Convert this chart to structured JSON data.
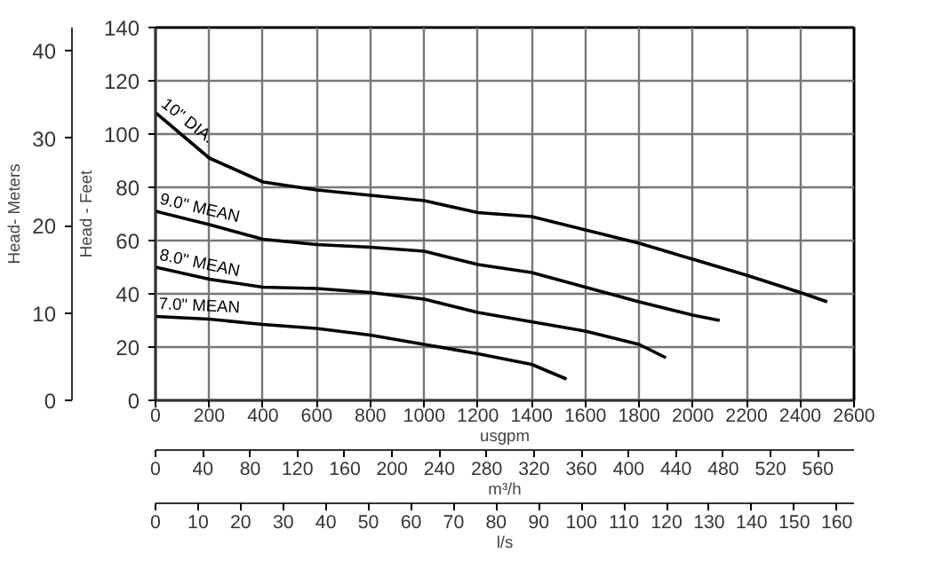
{
  "chart_data": {
    "type": "line",
    "xlabel": "usgpm",
    "ylabel": "Head - Feet",
    "y2label": "Head- Meters",
    "x2label": "m³/h",
    "xlim": [
      0,
      2600
    ],
    "xticks": [
      0,
      200,
      400,
      600,
      800,
      1000,
      1200,
      1400,
      1600,
      1800,
      2000,
      2200,
      2400,
      2600
    ],
    "ylim": [
      0,
      140
    ],
    "yticks": [
      0,
      20,
      40,
      60,
      80,
      100,
      120,
      140
    ],
    "y2lim": [
      0,
      42.67
    ],
    "y2ticks": [
      0,
      10,
      20,
      30,
      40
    ],
    "x2lim": [
      0,
      590.5
    ],
    "x2ticks": [
      0,
      40,
      80,
      120,
      160,
      200,
      240,
      280,
      320,
      360,
      400,
      440,
      480,
      520,
      560
    ],
    "annotations": [
      "l/s",
      "0",
      "10",
      "20",
      "30",
      "40",
      "50",
      "60",
      "70",
      "80",
      "90",
      "100",
      "110",
      "120",
      "130",
      "140",
      "150",
      "160"
    ],
    "grid": true,
    "marker": "none",
    "line_style": "solid",
    "series": [
      {
        "name": "10\" DIA.",
        "color": "#000000",
        "x": [
          0,
          200,
          400,
          600,
          800,
          1000,
          1200,
          1400,
          1600,
          1800,
          2000,
          2200,
          2400,
          2500
        ],
        "values": [
          108,
          91,
          82,
          79,
          77,
          75,
          70.5,
          69,
          64,
          59,
          53,
          47,
          40.5,
          37
        ]
      },
      {
        "name": "9.0\" MEAN",
        "color": "#000000",
        "x": [
          0,
          200,
          400,
          600,
          800,
          1000,
          1200,
          1400,
          1600,
          1800,
          2000,
          2100
        ],
        "values": [
          71,
          66,
          60.5,
          58.5,
          57.5,
          56,
          51,
          48,
          42.5,
          37,
          32,
          30
        ]
      },
      {
        "name": "8.0\" MEAN",
        "color": "#000000",
        "x": [
          0,
          200,
          400,
          600,
          800,
          1000,
          1200,
          1400,
          1600,
          1800,
          1900
        ],
        "values": [
          50,
          45.5,
          42.5,
          42,
          40.5,
          38,
          33,
          29.5,
          26,
          21,
          16
        ]
      },
      {
        "name": "7.0\" MEAN",
        "color": "#000000",
        "x": [
          0,
          200,
          400,
          600,
          800,
          1000,
          1200,
          1400,
          1530
        ],
        "values": [
          31.5,
          30.5,
          28.5,
          27,
          24.5,
          21,
          17.5,
          13.5,
          8
        ]
      }
    ]
  }
}
